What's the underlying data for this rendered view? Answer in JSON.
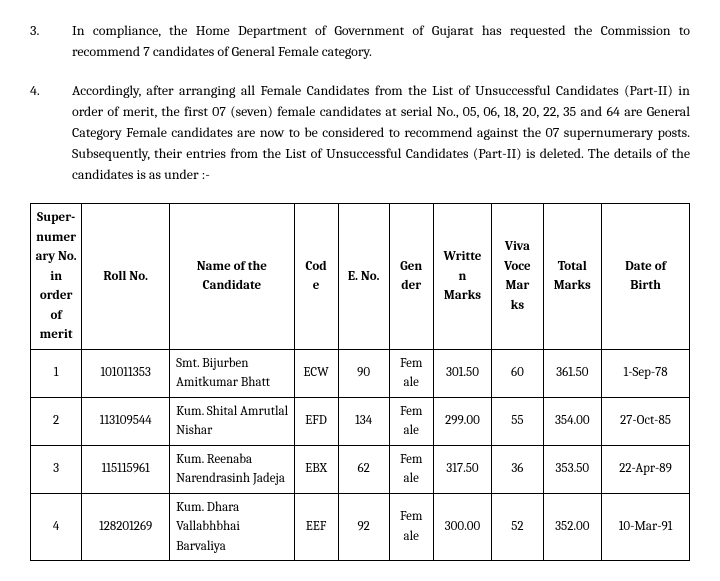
{
  "paragraphs": [
    {
      "num": "3.",
      "text": "In compliance, the Home Department of Government of Gujarat has requested the Commission to recommend 7 candidates of General Female category."
    },
    {
      "num": "4.",
      "text": "Accordingly, after arranging all Female Candidates from the List of Unsuccessful Candidates (Part-II) in order of merit, the first 07 (seven) female candidates at serial No., 05, 06, 18, 20, 22, 35 and 64 are General Category Female candidates are now to be considered to recommend against the 07 supernumerary posts. Subsequently, their entries from the List of Unsuccessful Candidates (Part-II) is deleted. The details of the candidates is as under :-"
    }
  ],
  "table": {
    "columns": [
      "Super-numerary No. in order of merit",
      "Roll No.",
      "Name of the Candidate",
      "Code",
      "E. No.",
      "Gender",
      "Written Marks",
      "Viva Voce Marks",
      "Total Marks",
      "Date of Birth"
    ],
    "header_display": {
      "sno": "Super-numerary No. in order of merit",
      "roll": "Roll No.",
      "name": "Name of the Candidate",
      "code": "Code",
      "eno": "E. No.",
      "gender": "Gender",
      "written": "Written Marks",
      "viva": "Viva Voce Marks",
      "total": "Total Marks",
      "dob": "Date of Birth"
    },
    "rows": [
      {
        "sno": "1",
        "roll": "101011353",
        "name": "Smt. Bijurben Amitkumar Bhatt",
        "code": "ECW",
        "eno": "90",
        "gender": "Female",
        "written": "301.50",
        "viva": "60",
        "total": "361.50",
        "dob": "1-Sep-78"
      },
      {
        "sno": "2",
        "roll": "113109544",
        "name": "Kum. Shital Amrutlal Nishar",
        "code": "EFD",
        "eno": "134",
        "gender": "Female",
        "written": "299.00",
        "viva": "55",
        "total": "354.00",
        "dob": "27-Oct-85"
      },
      {
        "sno": "3",
        "roll": "115115961",
        "name": "Kum. Reenaba Narendrasinh Jadeja",
        "code": "EBX",
        "eno": "62",
        "gender": "Female",
        "written": "317.50",
        "viva": "36",
        "total": "353.50",
        "dob": "22-Apr-89"
      },
      {
        "sno": "4",
        "roll": "128201269",
        "name": "Kum. Dhara Vallabhbhai Barvaliya",
        "code": "EEF",
        "eno": "92",
        "gender": "Female",
        "written": "300.00",
        "viva": "52",
        "total": "352.00",
        "dob": "10-Mar-91"
      }
    ],
    "font_size_pt": 13,
    "border_color": "#000000",
    "background_color": "#ffffff"
  }
}
